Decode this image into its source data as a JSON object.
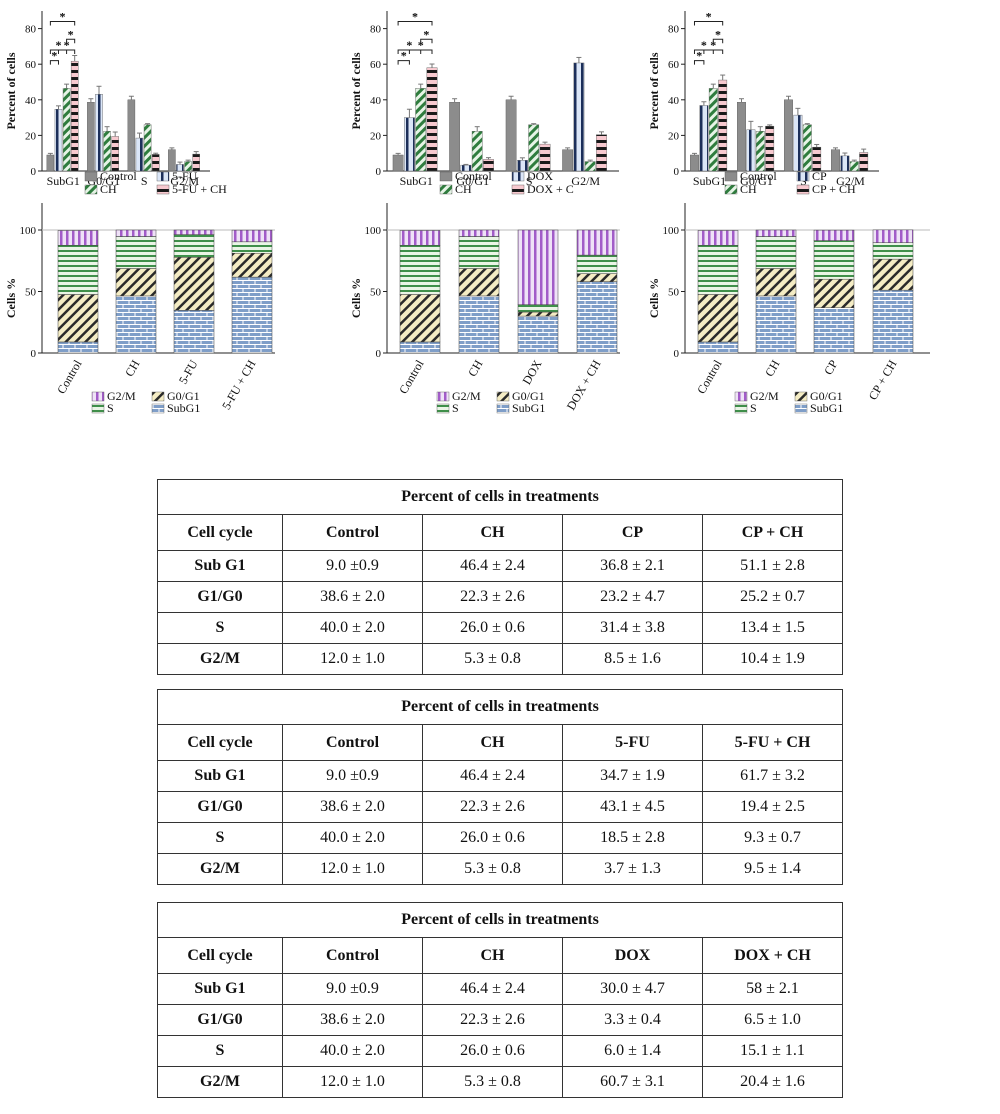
{
  "charts": {
    "bar_ylabel": "Percent of cells",
    "stack_ylabel": "Cells %",
    "phases": [
      "SubG1",
      "G0/G1",
      "S",
      "G2/M"
    ],
    "stack_legend": [
      "G2/M",
      "G0/G1",
      "S",
      "SubG1"
    ],
    "panels": [
      {
        "series_labels": [
          "Control",
          "5-FU",
          "CH",
          "5-FU + CH"
        ],
        "stack_categories": [
          "Control",
          "CH",
          "5-FU",
          "5-FU + CH"
        ]
      },
      {
        "series_labels": [
          "Control",
          "DOX",
          "CH",
          "DOX + C"
        ],
        "stack_categories": [
          "Control",
          "CH",
          "DOX",
          "DOX + CH"
        ]
      },
      {
        "series_labels": [
          "Control",
          "CP",
          "CH",
          "CP + CH"
        ],
        "stack_categories": [
          "Control",
          "CH",
          "CP",
          "CP + CH"
        ]
      }
    ]
  },
  "chart_data": [
    {
      "type": "bar",
      "ylabel": "Percent of cells",
      "ylim": [
        0,
        90
      ],
      "categories": [
        "SubG1",
        "G0/G1",
        "S",
        "G2/M"
      ],
      "significance_marker": "*",
      "series": [
        {
          "name": "Control",
          "values": [
            9.0,
            38.6,
            40.0,
            12.0
          ],
          "errors": [
            0.9,
            2.0,
            2.0,
            1.0
          ]
        },
        {
          "name": "CH",
          "values": [
            46.4,
            22.3,
            26.0,
            5.3
          ],
          "errors": [
            2.4,
            2.6,
            0.6,
            0.8
          ]
        },
        {
          "name": "5-FU",
          "values": [
            34.7,
            43.1,
            18.5,
            3.7
          ],
          "errors": [
            1.9,
            4.5,
            2.8,
            1.3
          ]
        },
        {
          "name": "5-FU + CH",
          "values": [
            61.7,
            19.4,
            9.3,
            9.5
          ],
          "errors": [
            3.2,
            2.5,
            0.7,
            1.4
          ]
        }
      ]
    },
    {
      "type": "bar",
      "ylabel": "Percent of cells",
      "ylim": [
        0,
        90
      ],
      "categories": [
        "SubG1",
        "G0/G1",
        "S",
        "G2/M"
      ],
      "significance_marker": "*",
      "series": [
        {
          "name": "Control",
          "values": [
            9.0,
            38.6,
            40.0,
            12.0
          ],
          "errors": [
            0.9,
            2.0,
            2.0,
            1.0
          ]
        },
        {
          "name": "CH",
          "values": [
            46.4,
            22.3,
            26.0,
            5.3
          ],
          "errors": [
            2.4,
            2.6,
            0.6,
            0.8
          ]
        },
        {
          "name": "DOX",
          "values": [
            30.0,
            3.3,
            6.0,
            60.7
          ],
          "errors": [
            4.7,
            0.4,
            1.4,
            3.1
          ]
        },
        {
          "name": "DOX + C",
          "values": [
            58.0,
            6.5,
            15.1,
            20.4
          ],
          "errors": [
            2.1,
            1.0,
            1.1,
            1.6
          ]
        }
      ]
    },
    {
      "type": "bar",
      "ylabel": "Percent of cells",
      "ylim": [
        0,
        90
      ],
      "categories": [
        "SubG1",
        "G0/G1",
        "S",
        "G2/M"
      ],
      "significance_marker": "*",
      "series": [
        {
          "name": "Control",
          "values": [
            9.0,
            38.6,
            40.0,
            12.0
          ],
          "errors": [
            0.9,
            2.0,
            2.0,
            1.0
          ]
        },
        {
          "name": "CH",
          "values": [
            46.4,
            22.3,
            26.0,
            5.3
          ],
          "errors": [
            2.4,
            2.6,
            0.6,
            0.8
          ]
        },
        {
          "name": "CP",
          "values": [
            36.8,
            23.2,
            31.4,
            8.5
          ],
          "errors": [
            2.1,
            4.7,
            3.8,
            1.6
          ]
        },
        {
          "name": "CP + CH",
          "values": [
            51.1,
            25.2,
            13.4,
            10.4
          ],
          "errors": [
            2.8,
            0.7,
            1.5,
            1.9
          ]
        }
      ]
    },
    {
      "type": "bar",
      "stacked": true,
      "ylabel": "Cells %",
      "ylim": [
        0,
        100
      ],
      "categories": [
        "Control",
        "CH",
        "5-FU",
        "5-FU + CH"
      ],
      "series": [
        {
          "name": "SubG1",
          "values": [
            9.0,
            46.4,
            34.7,
            61.7
          ]
        },
        {
          "name": "G0/G1",
          "values": [
            38.6,
            22.3,
            43.1,
            19.4
          ]
        },
        {
          "name": "S",
          "values": [
            40.0,
            26.0,
            18.5,
            9.3
          ]
        },
        {
          "name": "G2/M",
          "values": [
            12.0,
            5.3,
            3.7,
            9.5
          ]
        }
      ]
    },
    {
      "type": "bar",
      "stacked": true,
      "ylabel": "Cells %",
      "ylim": [
        0,
        100
      ],
      "categories": [
        "Control",
        "CH",
        "DOX",
        "DOX + CH"
      ],
      "series": [
        {
          "name": "SubG1",
          "values": [
            9.0,
            46.4,
            30.0,
            58.0
          ]
        },
        {
          "name": "G0/G1",
          "values": [
            38.6,
            22.3,
            3.3,
            6.5
          ]
        },
        {
          "name": "S",
          "values": [
            40.0,
            26.0,
            6.0,
            15.1
          ]
        },
        {
          "name": "G2/M",
          "values": [
            12.0,
            5.3,
            60.7,
            20.4
          ]
        }
      ]
    },
    {
      "type": "bar",
      "stacked": true,
      "ylabel": "Cells %",
      "ylim": [
        0,
        100
      ],
      "categories": [
        "Control",
        "CH",
        "CP",
        "CP + CH"
      ],
      "series": [
        {
          "name": "SubG1",
          "values": [
            9.0,
            46.4,
            36.8,
            51.1
          ]
        },
        {
          "name": "G0/G1",
          "values": [
            38.6,
            22.3,
            23.2,
            25.2
          ]
        },
        {
          "name": "S",
          "values": [
            40.0,
            26.0,
            31.4,
            13.4
          ]
        },
        {
          "name": "G2/M",
          "values": [
            12.0,
            5.3,
            8.5,
            10.4
          ]
        }
      ]
    },
    {
      "type": "table",
      "title": "Percent of cells in treatments",
      "columns": [
        "Cell cycle",
        "Control",
        "CH",
        "CP",
        "CP + CH"
      ],
      "rows": [
        [
          "Sub G1",
          "9.0 ±0.9",
          "46.4 ± 2.4",
          "36.8 ± 2.1",
          "51.1 ± 2.8"
        ],
        [
          "G1/G0",
          "38.6 ± 2.0",
          "22.3 ± 2.6",
          "23.2 ± 4.7",
          "25.2 ± 0.7"
        ],
        [
          "S",
          "40.0 ± 2.0",
          "26.0 ± 0.6",
          "31.4 ± 3.8",
          "13.4 ± 1.5"
        ],
        [
          "G2/M",
          "12.0 ± 1.0",
          "5.3 ± 0.8",
          "8.5 ± 1.6",
          "10.4 ± 1.9"
        ]
      ]
    },
    {
      "type": "table",
      "title": "Percent of cells in treatments",
      "columns": [
        "Cell cycle",
        "Control",
        "CH",
        "5-FU",
        "5-FU + CH"
      ],
      "rows": [
        [
          "Sub G1",
          "9.0 ±0.9",
          "46.4 ± 2.4",
          "34.7 ± 1.9",
          "61.7 ± 3.2"
        ],
        [
          "G1/G0",
          "38.6 ± 2.0",
          "22.3 ± 2.6",
          "43.1 ± 4.5",
          "19.4 ± 2.5"
        ],
        [
          "S",
          "40.0 ± 2.0",
          "26.0 ± 0.6",
          "18.5 ± 2.8",
          "9.3 ± 0.7"
        ],
        [
          "G2/M",
          "12.0 ± 1.0",
          "5.3 ± 0.8",
          "3.7 ± 1.3",
          "9.5 ± 1.4"
        ]
      ]
    },
    {
      "type": "table",
      "title": "Percent of cells in treatments",
      "columns": [
        "Cell cycle",
        "Control",
        "CH",
        "DOX",
        "DOX + CH"
      ],
      "rows": [
        [
          "Sub G1",
          "9.0 ±0.9",
          "46.4 ± 2.4",
          "30.0 ± 4.7",
          "58 ± 2.1"
        ],
        [
          "G1/G0",
          "38.6 ± 2.0",
          "22.3 ± 2.6",
          "3.3 ± 0.4",
          "6.5 ± 1.0"
        ],
        [
          "S",
          "40.0 ± 2.0",
          "26.0 ± 0.6",
          "6.0 ± 1.4",
          "15.1 ± 1.1"
        ],
        [
          "G2/M",
          "12.0 ± 1.0",
          "5.3 ± 0.8",
          "60.7 ± 3.1",
          "20.4 ± 1.6"
        ]
      ]
    }
  ],
  "colors": {
    "control": "#8c8c8c",
    "ch_stripe": "#2f7d3e",
    "ch_bg": "#e6f4e6",
    "drug_stripe": "#1c2f5a",
    "drug_bg": "#dbe6f7",
    "combo_stripe": "#1a1a1a",
    "combo_bg": "#f7c9cf",
    "g2m_stripe": "#a25cc8",
    "g2m_bg": "#efe2f7",
    "s_stripe": "#3f8f4a",
    "s_bg": "#eaf5e6",
    "g0g1_stripe": "#2a2a2a",
    "g0g1_bg": "#f4ecc4",
    "subg1_line": "#ffffff",
    "subg1_bg": "#7f9ec8"
  }
}
